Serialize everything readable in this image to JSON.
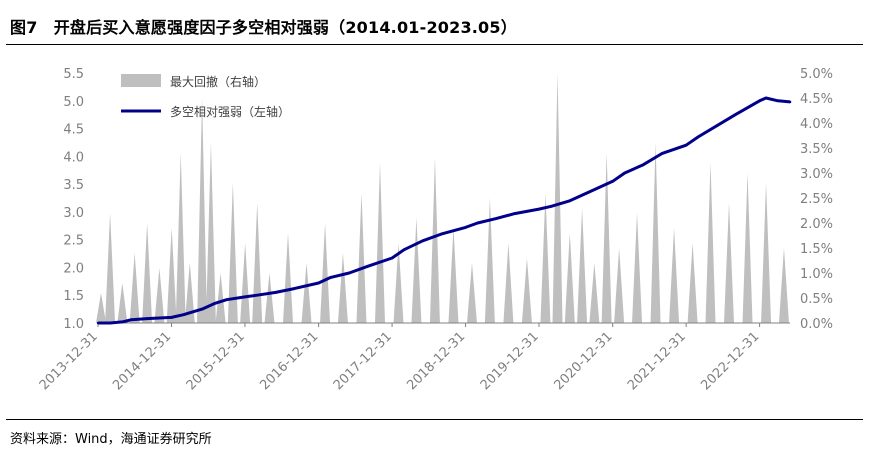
{
  "figure": {
    "title": "图7　开盘后买入意愿强度因子多空相对强弱（2014.01-2023.05）",
    "source": "资料来源：Wind，海通证券研究所"
  },
  "colors": {
    "line": "#00008b",
    "bars": "#bfbfbf",
    "axis_text": "#7f7f7f"
  },
  "chart_data": {
    "type": "line",
    "title": "",
    "x_categories": [
      "2013-12-31",
      "2014-12-31",
      "2015-12-31",
      "2016-12-31",
      "2017-12-31",
      "2018-12-31",
      "2019-12-31",
      "2020-12-31",
      "2021-12-31",
      "2022-12-31"
    ],
    "x_range": [
      "2013-12-31",
      "2023-05-31"
    ],
    "y_left": {
      "min": 1.0,
      "max": 5.5,
      "step": 0.5,
      "ticks": [
        "1.0",
        "1.5",
        "2.0",
        "2.5",
        "3.0",
        "3.5",
        "4.0",
        "4.5",
        "5.0",
        "5.5"
      ]
    },
    "y_right": {
      "min": 0.0,
      "max": 5.0,
      "step": 0.5,
      "ticks": [
        "0.0%",
        "0.5%",
        "1.0%",
        "1.5%",
        "2.0%",
        "2.5%",
        "3.0%",
        "3.5%",
        "4.0%",
        "4.5%",
        "5.0%"
      ]
    },
    "legend": {
      "placement": "top-left",
      "items": [
        {
          "label": "最大回撤（右轴）",
          "kind": "area",
          "color": "#bfbfbf"
        },
        {
          "label": "多空相对强弱（左轴）",
          "kind": "line",
          "color": "#00008b"
        }
      ]
    },
    "series": [
      {
        "name": "多空相对强弱（左轴）",
        "axis": "left",
        "type": "line",
        "color": "#00008b",
        "x": [
          "2014-01-01",
          "2014-03-01",
          "2014-05-01",
          "2014-06-15",
          "2014-09-01",
          "2014-12-31",
          "2015-03-01",
          "2015-06-01",
          "2015-08-01",
          "2015-10-01",
          "2015-12-31",
          "2016-03-01",
          "2016-06-01",
          "2016-09-01",
          "2016-12-31",
          "2017-03-01",
          "2017-06-01",
          "2017-09-01",
          "2017-12-31",
          "2018-03-01",
          "2018-06-01",
          "2018-09-01",
          "2018-12-31",
          "2019-03-01",
          "2019-06-01",
          "2019-09-01",
          "2019-12-31",
          "2020-03-01",
          "2020-06-01",
          "2020-09-01",
          "2020-12-31",
          "2021-03-01",
          "2021-06-01",
          "2021-09-01",
          "2021-12-31",
          "2022-03-01",
          "2022-06-01",
          "2022-09-01",
          "2022-12-31",
          "2023-02-01",
          "2023-04-01",
          "2023-05-31"
        ],
        "y": [
          1.0,
          1.0,
          1.02,
          1.06,
          1.08,
          1.1,
          1.15,
          1.25,
          1.35,
          1.42,
          1.47,
          1.5,
          1.55,
          1.62,
          1.72,
          1.82,
          1.9,
          2.02,
          2.17,
          2.32,
          2.48,
          2.6,
          2.72,
          2.8,
          2.88,
          2.97,
          3.05,
          3.1,
          3.2,
          3.35,
          3.55,
          3.7,
          3.85,
          4.05,
          4.2,
          4.35,
          4.55,
          4.75,
          5.0,
          5.05,
          5.0,
          4.98
        ]
      },
      {
        "name": "最大回撤（右轴）",
        "axis": "right",
        "type": "area",
        "color": "#bfbfbf",
        "x": [
          "2014-01-15",
          "2014-03-01",
          "2014-05-01",
          "2014-07-01",
          "2014-09-01",
          "2014-11-01",
          "2015-01-01",
          "2015-02-15",
          "2015-04-01",
          "2015-06-01",
          "2015-07-15",
          "2015-09-01",
          "2015-11-01",
          "2016-01-01",
          "2016-03-01",
          "2016-05-01",
          "2016-08-01",
          "2016-11-01",
          "2017-02-01",
          "2017-05-01",
          "2017-08-01",
          "2017-11-01",
          "2018-02-01",
          "2018-05-01",
          "2018-08-01",
          "2018-11-01",
          "2019-02-01",
          "2019-05-01",
          "2019-08-01",
          "2019-11-01",
          "2020-02-01",
          "2020-04-01",
          "2020-06-01",
          "2020-08-01",
          "2020-10-01",
          "2020-12-01",
          "2021-02-01",
          "2021-05-01",
          "2021-08-01",
          "2021-11-01",
          "2022-02-01",
          "2022-05-01",
          "2022-08-01",
          "2022-11-01",
          "2023-02-01",
          "2023-05-01"
        ],
        "y": [
          0.6,
          2.2,
          0.8,
          1.4,
          2.0,
          1.1,
          1.9,
          3.4,
          1.2,
          4.5,
          3.6,
          1.0,
          2.8,
          1.6,
          2.4,
          1.0,
          1.8,
          1.2,
          2.0,
          1.4,
          2.6,
          3.2,
          1.6,
          2.1,
          3.3,
          1.9,
          1.2,
          2.5,
          1.6,
          1.3,
          2.6,
          5.0,
          1.8,
          2.3,
          1.2,
          3.4,
          1.5,
          2.2,
          3.6,
          1.9,
          1.6,
          3.2,
          2.4,
          3.0,
          2.8,
          1.5
        ]
      }
    ]
  }
}
